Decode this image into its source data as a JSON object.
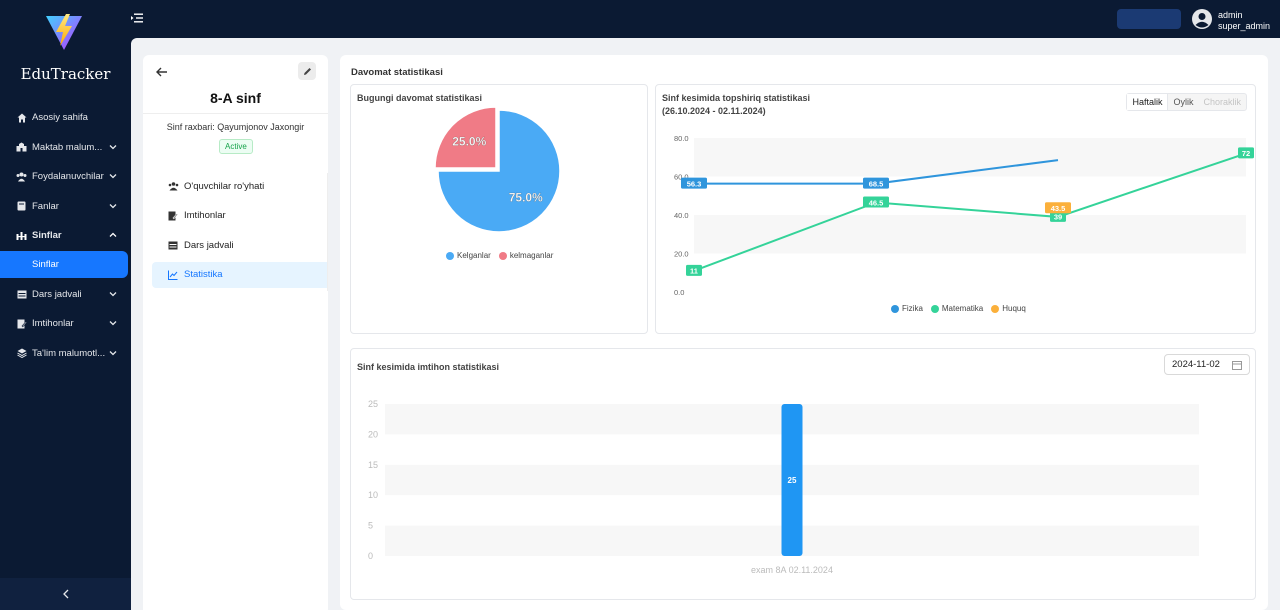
{
  "app": {
    "brand": "EduTracker"
  },
  "sidebar": {
    "items": [
      {
        "label": "Asosiy sahifa",
        "icon": "home-icon",
        "chevron": false
      },
      {
        "label": "Maktab malum...",
        "icon": "school-icon",
        "chevron": "down"
      },
      {
        "label": "Foydalanuvchilar",
        "icon": "users-icon",
        "chevron": "down"
      },
      {
        "label": "Fanlar",
        "icon": "book-icon",
        "chevron": "down"
      },
      {
        "label": "Sinflar",
        "icon": "classes-icon",
        "chevron": "up",
        "bold": true
      },
      {
        "label": "Sinflar",
        "sub": true
      },
      {
        "label": "Dars jadvali",
        "icon": "calendar-icon",
        "chevron": "down"
      },
      {
        "label": "Imtihonlar",
        "icon": "exam-icon",
        "chevron": "down"
      },
      {
        "label": "Ta'lim malumotl...",
        "icon": "layers-icon",
        "chevron": "down"
      }
    ]
  },
  "header": {
    "user_name": "admin",
    "user_role": "super_admin"
  },
  "class_panel": {
    "title": "8-A sinf",
    "leader": "Sinf raxbari: Qayumjonov Jaxongir",
    "status": "Active",
    "menu": [
      {
        "label": "O'quvchilar ro'yhati",
        "icon": "students-icon"
      },
      {
        "label": "Imtihonlar",
        "icon": "exam-icon"
      },
      {
        "label": "Dars jadvali",
        "icon": "calendar-icon"
      },
      {
        "label": "Statistika",
        "icon": "chart-icon",
        "active": true
      }
    ]
  },
  "stats": {
    "title": "Davomat statistikasi",
    "attendance_title": "Bugungi davomat statistikasi",
    "tasks_title": "Sinf kesimida topshiriq statistikasi",
    "tasks_range": "(26.10.2024 - 02.11.2024)",
    "segments": [
      "Haftalik",
      "Oylik",
      "Choraklik"
    ],
    "exam_title": "Sinf kesimida imtihon statistikasi",
    "date_value": "2024-11-02"
  },
  "chart_data": [
    {
      "type": "pie",
      "slices": [
        {
          "name": "Kelganlar",
          "value": 75.0,
          "label": "75.0%",
          "color": "#4aaaf5"
        },
        {
          "name": "kelmaganlar",
          "value": 25.0,
          "label": "25.0%",
          "color": "#f07b86"
        }
      ]
    },
    {
      "type": "line",
      "ylim": [
        0,
        80
      ],
      "ticks": [
        "80.0",
        "60.0",
        "40.0",
        "20.0",
        "0.0"
      ],
      "series": [
        {
          "name": "Fizika",
          "color": "#2f95dc",
          "points": [
            [
              0,
              56.3
            ],
            [
              1,
              56.3
            ],
            [
              2,
              68.5
            ]
          ],
          "labels": [
            "56.3",
            "68.5"
          ]
        },
        {
          "name": "Matematika",
          "color": "#34d399",
          "points": [
            [
              0,
              11
            ],
            [
              1,
              46.5
            ],
            [
              2,
              39
            ],
            [
              3,
              72
            ]
          ],
          "labels": [
            "11",
            "46.5",
            "39",
            "72"
          ]
        },
        {
          "name": "Huquq",
          "color": "#fbb03b",
          "points": [
            [
              2,
              43.5
            ]
          ],
          "labels": [
            "43.5"
          ]
        }
      ]
    },
    {
      "type": "bar",
      "ylim": [
        0,
        25
      ],
      "ticks": [
        "25",
        "20",
        "15",
        "10",
        "5",
        "0"
      ],
      "categories": [
        "exam 8A 02.11.2024"
      ],
      "values": [
        25
      ],
      "color": "#1f96f3"
    }
  ]
}
